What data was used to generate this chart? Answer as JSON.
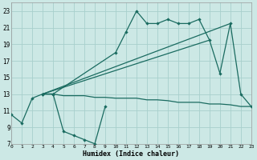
{
  "xlabel": "Humidex (Indice chaleur)",
  "xlim": [
    0,
    23
  ],
  "ylim": [
    7,
    24
  ],
  "xticks": [
    0,
    1,
    2,
    3,
    4,
    5,
    6,
    7,
    8,
    9,
    10,
    11,
    12,
    13,
    14,
    15,
    16,
    17,
    18,
    19,
    20,
    21,
    22,
    23
  ],
  "yticks": [
    7,
    9,
    11,
    13,
    15,
    17,
    19,
    21,
    23
  ],
  "background_color": "#cce8e5",
  "grid_color": "#a8d0cc",
  "line_color": "#1a6b60",
  "series_zigzag": {
    "x": [
      0,
      1,
      2,
      3,
      4,
      5,
      6,
      7,
      8,
      9
    ],
    "y": [
      10.5,
      9.5,
      12.5,
      13.0,
      13.0,
      8.5,
      8.0,
      7.5,
      7.0,
      11.5
    ]
  },
  "series_flat": {
    "x": [
      3,
      4,
      5,
      6,
      7,
      8,
      9,
      10,
      11,
      12,
      13,
      14,
      15,
      16,
      17,
      18,
      19,
      20,
      21,
      22,
      23
    ],
    "y": [
      13.0,
      13.0,
      12.8,
      12.8,
      12.8,
      12.6,
      12.6,
      12.5,
      12.5,
      12.5,
      12.3,
      12.3,
      12.2,
      12.0,
      12.0,
      12.0,
      11.8,
      11.8,
      11.7,
      11.5,
      11.5
    ]
  },
  "series_upper_marked": {
    "x": [
      3,
      4,
      10,
      11,
      12,
      13,
      14,
      15,
      16,
      17,
      18,
      19,
      20,
      21,
      22,
      23
    ],
    "y": [
      13.0,
      13.0,
      18.0,
      20.5,
      23.0,
      21.5,
      21.5,
      22.0,
      21.5,
      21.5,
      22.0,
      19.5,
      15.5,
      21.5,
      13.0,
      11.5
    ]
  },
  "series_line1": {
    "x": [
      3,
      19
    ],
    "y": [
      13.0,
      19.5
    ]
  },
  "series_line2": {
    "x": [
      3,
      21
    ],
    "y": [
      13.0,
      21.5
    ]
  }
}
